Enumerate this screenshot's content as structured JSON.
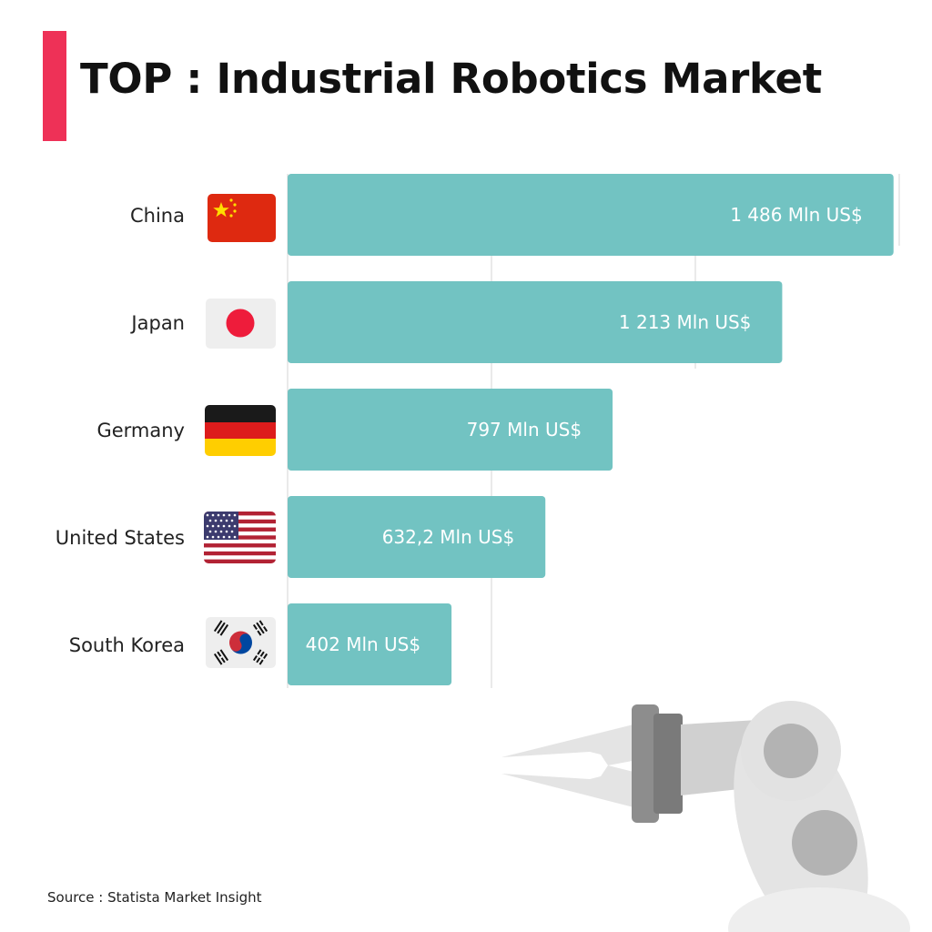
{
  "title": "TOP : Industrial Robotics Market",
  "source": "Source : Statista Market Insight",
  "colors": {
    "accent": "#ee3157",
    "bar": "#72c3c2",
    "grid": "#d4d4d4"
  },
  "chart_data": {
    "type": "bar",
    "orientation": "horizontal",
    "categories": [
      "China",
      "Japan",
      "Germany",
      "United States",
      "South Korea"
    ],
    "values": [
      1486,
      1213,
      797,
      632.2,
      402
    ],
    "value_labels": [
      "1 486 Mln US$",
      "1 213 Mln US$",
      "797 Mln US$",
      "632,2 Mln US$",
      "402 Mln US$"
    ],
    "flags": [
      "china-flag",
      "japan-flag",
      "germany-flag",
      "usa-flag",
      "south-korea-flag"
    ],
    "xlim": [
      0,
      1500
    ],
    "grid": true
  }
}
